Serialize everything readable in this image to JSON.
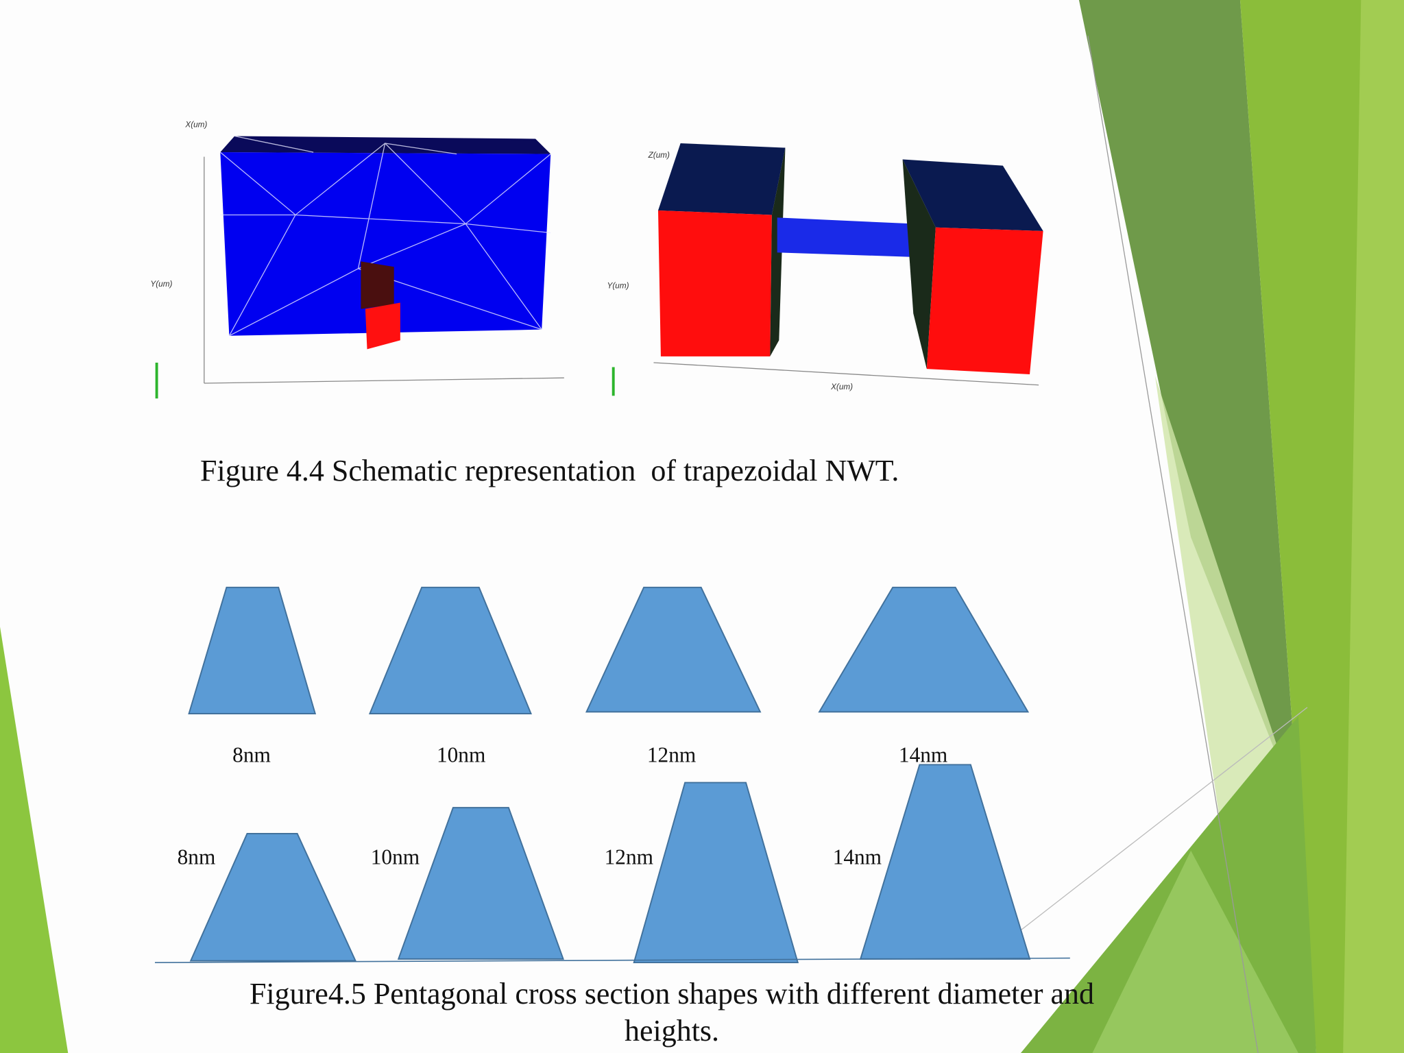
{
  "figure_4_4": {
    "caption": "Figure 4.4 Schematic representation  of trapezoidal NWT.",
    "left_view": {
      "axis_labels": [
        "X(um)",
        "Y(um)"
      ]
    },
    "right_view": {
      "axis_labels": [
        "Z(um)",
        "Y(um)",
        "X(um)"
      ]
    }
  },
  "figure_4_5": {
    "caption": "Figure4.5 Pentagonal cross section shapes with different diameter and heights.",
    "row_1_labels": [
      "8nm",
      "10nm",
      "12nm",
      "14nm"
    ],
    "row_2_labels": [
      "8nm",
      "10nm",
      "12nm",
      "14nm"
    ]
  }
}
